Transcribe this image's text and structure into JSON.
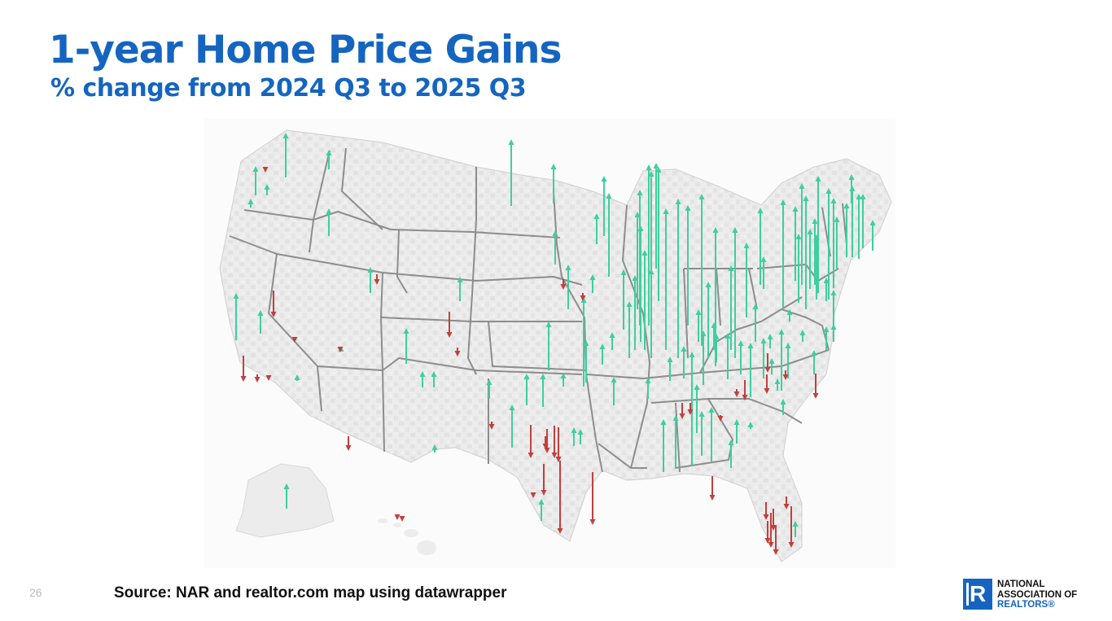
{
  "slide": {
    "title": "1-year Home Price Gains",
    "subtitle": "% change from 2024 Q3 to 2025 Q3",
    "page_number": "26",
    "source": "Source: NAR and realtor.com map using datawrapper"
  },
  "logo": {
    "line1": "NATIONAL",
    "line2": "ASSOCIATION OF",
    "line3": "REALTORS®"
  },
  "colors": {
    "title": "#1565c0",
    "gain_arrow": "#3ecf9e",
    "decline_arrow": "#c0403d",
    "land": "#ebebeb",
    "borders": "#888888"
  },
  "map": {
    "region": "United States (contiguous states, Alaska, Hawaii)",
    "arrow_meaning": "Arrow length proportional to 1-year % change; up = gain, down = decline",
    "gain_arrows": [
      [
        351,
        163,
        218
      ],
      [
        314,
        204,
        240
      ],
      [
        328,
        226,
        240
      ],
      [
        404,
        184,
        208
      ],
      [
        404,
        256,
        290
      ],
      [
        308,
        244,
        255
      ],
      [
        455,
        328,
        360
      ],
      [
        290,
        360,
        418
      ],
      [
        320,
        381,
        410
      ],
      [
        365,
        460,
        468
      ],
      [
        419,
        425,
        432
      ],
      [
        499,
        403,
        447
      ],
      [
        565,
        340,
        370
      ],
      [
        519,
        456,
        476
      ],
      [
        533,
        456,
        476
      ],
      [
        534,
        546,
        556
      ],
      [
        601,
        466,
        490
      ],
      [
        629,
        497,
        550
      ],
      [
        628,
        171,
        253
      ],
      [
        680,
        201,
        250
      ],
      [
        682,
        283,
        325
      ],
      [
        698,
        325,
        380
      ],
      [
        647,
        459,
        498
      ],
      [
        667,
        459,
        500
      ],
      [
        692,
        458,
        475
      ],
      [
        674,
        395,
        455
      ],
      [
        717,
        365,
        475
      ],
      [
        720,
        418,
        470
      ],
      [
        740,
        422,
        448
      ],
      [
        752,
        408,
        430
      ],
      [
        754,
        463,
        498
      ],
      [
        705,
        525,
        548
      ],
      [
        713,
        527,
        546
      ],
      [
        665,
        613,
        640
      ],
      [
        352,
        594,
        625
      ],
      [
        733,
        262,
        300
      ],
      [
        742,
        216,
        290
      ],
      [
        748,
        237,
        340
      ],
      [
        783,
        260,
        380
      ],
      [
        786,
        233,
        400
      ],
      [
        787,
        277,
        420
      ],
      [
        792,
        307,
        430
      ],
      [
        797,
        202,
        400
      ],
      [
        800,
        210,
        440
      ],
      [
        806,
        200,
        330
      ],
      [
        809,
        205,
        370
      ],
      [
        780,
        338,
        430
      ],
      [
        766,
        331,
        405
      ],
      [
        728,
        337,
        360
      ],
      [
        773,
        370,
        440
      ],
      [
        800,
        330,
        435
      ],
      [
        818,
        256,
        430
      ],
      [
        833,
        244,
        440
      ],
      [
        845,
        252,
        400
      ],
      [
        862,
        238,
        425
      ],
      [
        870,
        346,
        440
      ],
      [
        858,
        380,
        420
      ],
      [
        879,
        279,
        450
      ],
      [
        877,
        396,
        430
      ],
      [
        898,
        326,
        430
      ],
      [
        903,
        279,
        440
      ],
      [
        917,
        298,
        390
      ],
      [
        928,
        373,
        420
      ],
      [
        934,
        255,
        350
      ],
      [
        938,
        315,
        355
      ],
      [
        946,
        410,
        428
      ],
      [
        960,
        404,
        480
      ],
      [
        962,
        245,
        380
      ],
      [
        977,
        253,
        345
      ],
      [
        981,
        287,
        372
      ],
      [
        985,
        225,
        350
      ],
      [
        990,
        240,
        380
      ],
      [
        995,
        281,
        355
      ],
      [
        1001,
        268,
        350
      ],
      [
        1003,
        288,
        368
      ],
      [
        1005,
        216,
        360
      ],
      [
        1018,
        231,
        368
      ],
      [
        1024,
        243,
        354
      ],
      [
        1028,
        266,
        330
      ],
      [
        1040,
        249,
        316
      ],
      [
        1046,
        214,
        250
      ],
      [
        1047,
        228,
        316
      ],
      [
        1055,
        238,
        318
      ],
      [
        1060,
        238,
        305
      ],
      [
        1072,
        270,
        308
      ],
      [
        1015,
        401,
        430
      ],
      [
        1000,
        430,
        460
      ],
      [
        968,
        421,
        465
      ],
      [
        938,
        415,
        465
      ],
      [
        922,
        421,
        488
      ],
      [
        910,
        418,
        460
      ],
      [
        894,
        409,
        466
      ],
      [
        880,
        410,
        445
      ],
      [
        864,
        406,
        473
      ],
      [
        874,
        500,
        568
      ],
      [
        850,
        432,
        572
      ],
      [
        856,
        472,
        532
      ],
      [
        862,
        505,
        560
      ],
      [
        840,
        425,
        465
      ],
      [
        830,
        510,
        576
      ],
      [
        823,
        438,
        468
      ],
      [
        815,
        515,
        580
      ],
      [
        796,
        464,
        490
      ],
      [
        1024,
        356,
        400
      ],
      [
        1015,
        341,
        370
      ],
      [
        970,
        380,
        395
      ],
      [
        986,
        405,
        420
      ],
      [
        1024,
        398,
        420
      ],
      [
        905,
        515,
        545
      ],
      [
        898,
        540,
        575
      ],
      [
        922,
        518,
        527
      ],
      [
        977,
        640,
        660
      ],
      [
        962,
        490,
        510
      ],
      [
        955,
        465,
        480
      ],
      [
        948,
        440,
        460
      ]
    ],
    "decline_arrows": [
      [
        326,
        205,
        212
      ],
      [
        463,
        337,
        350
      ],
      [
        336,
        357,
        390
      ],
      [
        299,
        437,
        469
      ],
      [
        316,
        460,
        470
      ],
      [
        330,
        462,
        468
      ],
      [
        362,
        415,
        421
      ],
      [
        418,
        428,
        433
      ],
      [
        428,
        536,
        554
      ],
      [
        552,
        383,
        415
      ],
      [
        562,
        427,
        438
      ],
      [
        604,
        518,
        528
      ],
      [
        652,
        522,
        563
      ],
      [
        670,
        536,
        552
      ],
      [
        672,
        527,
        557
      ],
      [
        681,
        523,
        563
      ],
      [
        686,
        525,
        568
      ],
      [
        655,
        605,
        612
      ],
      [
        668,
        570,
        609
      ],
      [
        688,
        566,
        656
      ],
      [
        728,
        580,
        645
      ],
      [
        692,
        343,
        356
      ],
      [
        716,
        360,
        370
      ],
      [
        875,
        585,
        615
      ],
      [
        915,
        467,
        492
      ],
      [
        942,
        460,
        484
      ],
      [
        943,
        434,
        458
      ],
      [
        965,
        455,
        467
      ],
      [
        1002,
        459,
        490
      ],
      [
        838,
        495,
        515
      ],
      [
        848,
        495,
        510
      ],
      [
        885,
        510,
        518
      ],
      [
        905,
        478,
        488
      ],
      [
        941,
        617,
        639
      ],
      [
        950,
        625,
        652
      ],
      [
        947,
        630,
        673
      ],
      [
        943,
        640,
        668
      ],
      [
        953,
        645,
        682
      ],
      [
        966,
        610,
        626
      ],
      [
        972,
        622,
        673
      ],
      [
        488,
        633,
        639
      ],
      [
        494,
        635,
        641
      ]
    ]
  }
}
